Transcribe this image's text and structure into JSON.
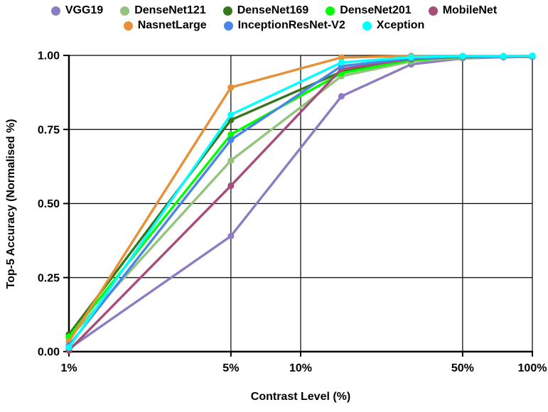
{
  "chart_data": {
    "type": "line",
    "title": "",
    "xlabel": "Contrast Level (%)",
    "ylabel": "Top-5 Accuracy  (Normalised %)",
    "x_scale": "log",
    "xlim": [
      1,
      100
    ],
    "ylim": [
      0,
      1
    ],
    "grid": true,
    "legend_position": "top",
    "x": [
      1,
      5,
      15,
      30,
      50,
      75,
      100
    ],
    "x_tick_values": [
      1,
      5,
      10,
      50,
      100
    ],
    "x_tick_labels": [
      "1%",
      "5%",
      "10%",
      "50%",
      "100%"
    ],
    "y_tick_values": [
      0,
      0.25,
      0.5,
      0.75,
      1
    ],
    "y_tick_labels": [
      "0.00",
      "0.25",
      "0.50",
      "0.75",
      "1.00"
    ],
    "series": [
      {
        "name": "VGG19",
        "color": "#8e7cc3",
        "values": [
          0.01,
          0.39,
          0.862,
          0.97,
          0.99,
          0.994,
          0.995
        ]
      },
      {
        "name": "DenseNet121",
        "color": "#93c47d",
        "values": [
          0.045,
          0.645,
          0.93,
          0.98,
          0.992,
          0.995,
          0.997
        ]
      },
      {
        "name": "DenseNet169",
        "color": "#38761d",
        "values": [
          0.058,
          0.782,
          0.945,
          0.986,
          0.995,
          0.996,
          0.998
        ]
      },
      {
        "name": "DenseNet201",
        "color": "#00ff00",
        "values": [
          0.05,
          0.733,
          0.94,
          0.985,
          0.995,
          0.996,
          0.998
        ]
      },
      {
        "name": "MobileNet",
        "color": "#a64d79",
        "values": [
          0.004,
          0.56,
          0.954,
          0.988,
          0.995,
          0.996,
          0.998
        ]
      },
      {
        "name": "NasnetLarge",
        "color": "#e69138",
        "values": [
          0.034,
          0.892,
          0.993,
          0.998,
          0.998,
          0.996,
          0.998
        ]
      },
      {
        "name": "InceptionResNet-V2",
        "color": "#4a86e8",
        "values": [
          0.02,
          0.715,
          0.964,
          0.99,
          0.996,
          0.997,
          0.998
        ]
      },
      {
        "name": "Xception",
        "color": "#00ffff",
        "values": [
          0.014,
          0.8,
          0.976,
          0.994,
          0.998,
          0.998,
          0.999
        ]
      }
    ],
    "axis_color": "#000000",
    "grid_color": "#000000",
    "background_color": "#ffffff"
  }
}
